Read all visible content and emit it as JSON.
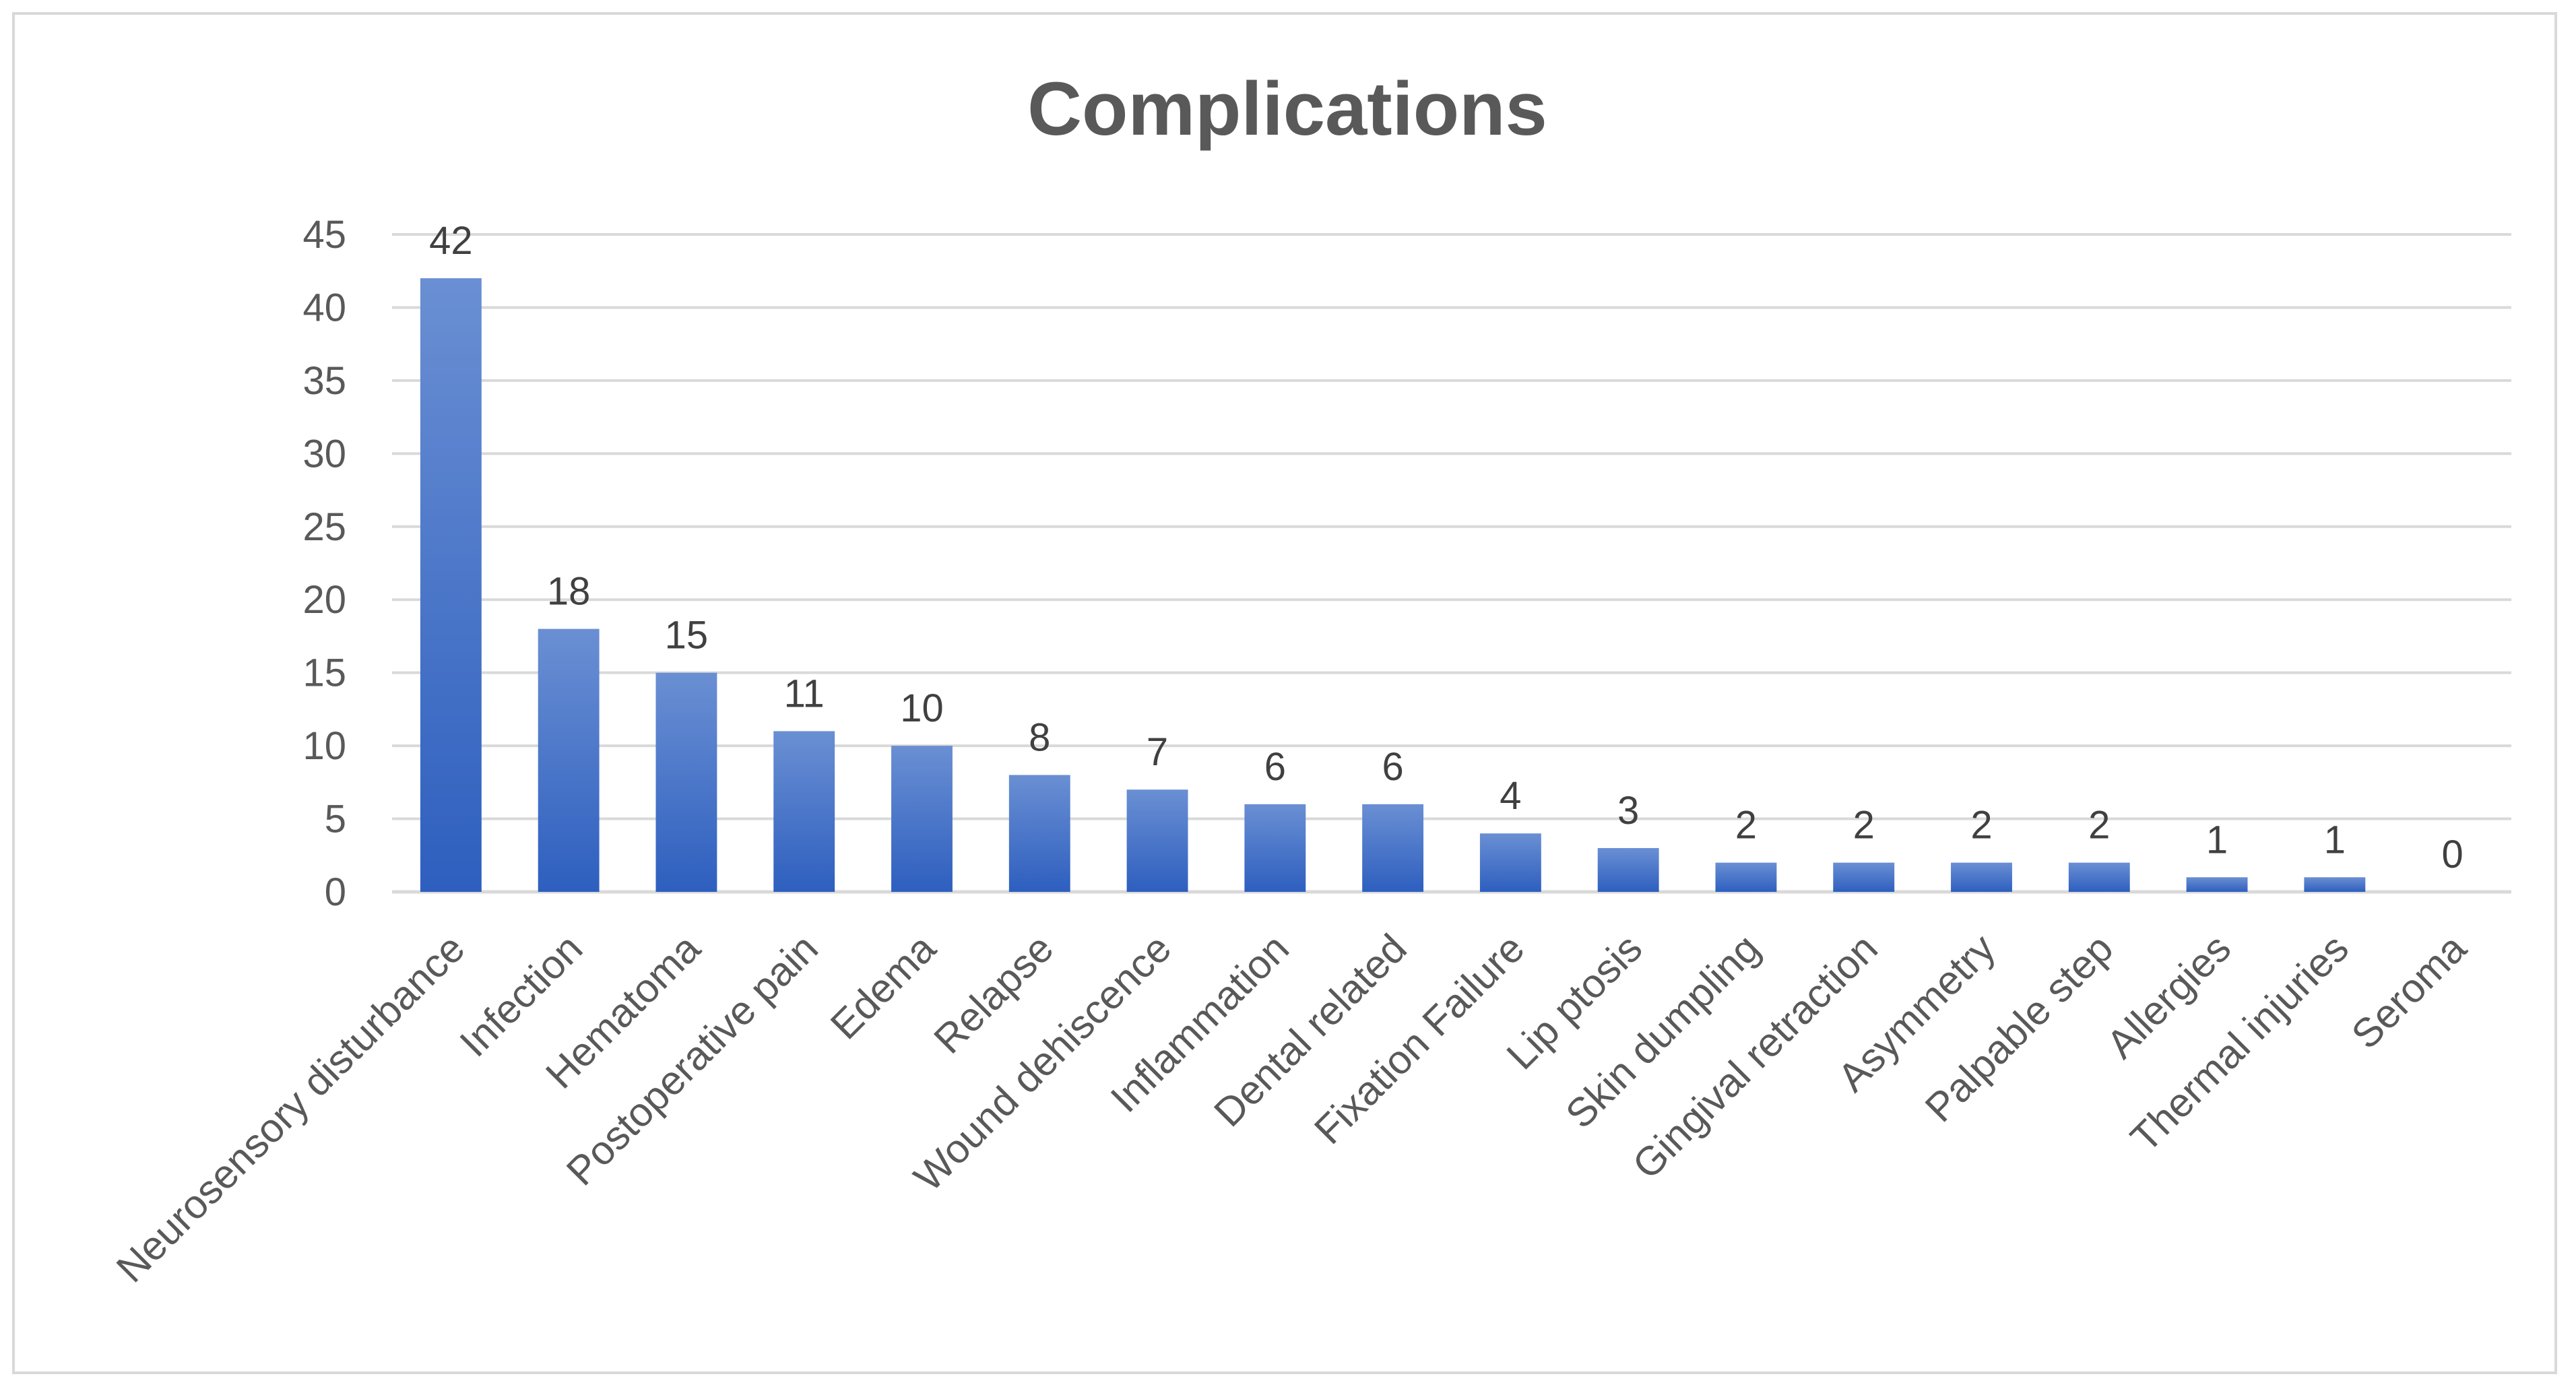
{
  "chart_data": {
    "type": "bar",
    "title": "Complications",
    "xlabel": "",
    "ylabel": "",
    "ylim": [
      0,
      45
    ],
    "yticks": [
      0,
      5,
      10,
      15,
      20,
      25,
      30,
      35,
      40,
      45
    ],
    "grid": true,
    "legend": "none",
    "data_labels": true,
    "categories": [
      "Neurosensory disturbance",
      "Infection",
      "Hematoma",
      "Postoperative pain",
      "Edema",
      "Relapse",
      "Wound dehiscence",
      "Inflammation",
      "Dental related",
      "Fixation Failure",
      "Lip ptosis",
      "Skin dumpling",
      "Gingival retraction",
      "Asymmetry",
      "Palpable step",
      "Allergies",
      "Thermal injuries",
      "Seroma"
    ],
    "values": [
      42,
      18,
      15,
      11,
      10,
      8,
      7,
      6,
      6,
      4,
      3,
      2,
      2,
      2,
      2,
      1,
      1,
      0
    ]
  },
  "colors": {
    "bar_top": "#6a8fd3",
    "bar_bottom": "#2e5fbf",
    "gridline": "#d9d9d9",
    "axis_text": "#595959",
    "title_text": "#595959",
    "frame_border": "#d9d9d9"
  }
}
